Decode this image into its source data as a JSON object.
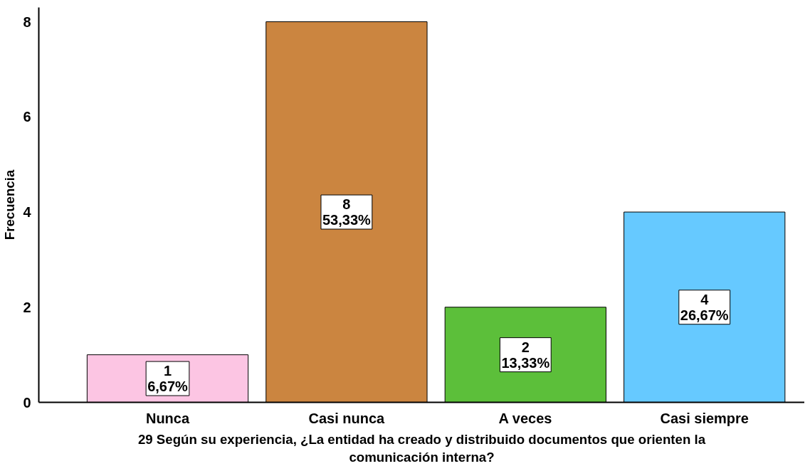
{
  "chart_data": {
    "type": "bar",
    "xlabel": "29 Según su experiencia, ¿La entidad ha creado y distribuido documentos que orienten la comunicación interna?",
    "ylabel": "Frecuencia",
    "categories": [
      "Nunca",
      "Casi nunca",
      "A veces",
      "Casi siempre"
    ],
    "values": [
      1,
      8,
      2,
      4
    ],
    "colors": [
      "#fcc5e3",
      "#cb8540",
      "#5cbf3a",
      "#66c9ff"
    ],
    "value_labels": [
      "1\n6,67%",
      "8\n53,33%",
      "2\n13,33%",
      "4\n26,67%"
    ],
    "ylim": [
      0,
      8.3
    ],
    "yticks": [
      0,
      2,
      4,
      6,
      8
    ],
    "grid": false
  }
}
